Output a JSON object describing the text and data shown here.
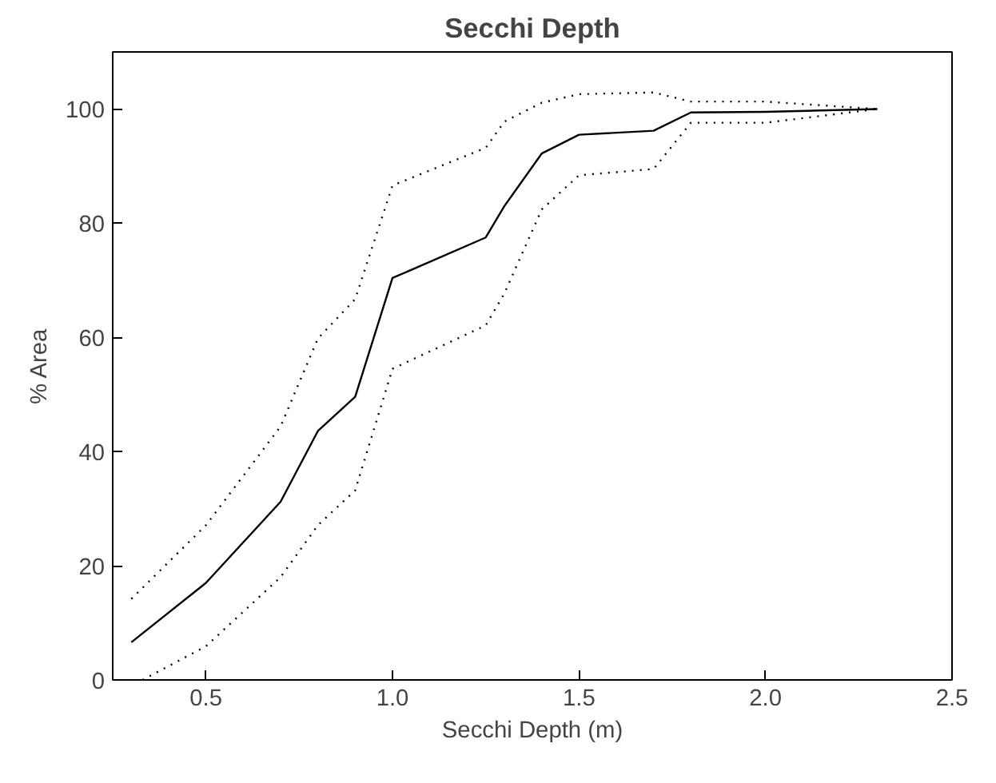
{
  "chart_data": {
    "type": "line",
    "title": "Secchi Depth",
    "xlabel": "Secchi Depth (m)",
    "ylabel": "% Area",
    "x": [
      0.3,
      0.5,
      0.7,
      0.8,
      0.9,
      1.0,
      1.25,
      1.3,
      1.4,
      1.5,
      1.7,
      1.8,
      2.0,
      2.3
    ],
    "series": [
      {
        "color": "#000000",
        "line_style": "solid",
        "values": [
          6.6,
          17.0,
          31.2,
          43.6,
          49.6,
          70.4,
          77.5,
          83.0,
          92.2,
          95.5,
          96.2,
          99.4,
          99.5,
          100
        ]
      },
      {
        "color": "#000000",
        "line_style": "dotted",
        "values": [
          14.2,
          27.1,
          44.4,
          59.8,
          66.7,
          86.6,
          93.2,
          97.8,
          101.1,
          102.6,
          102.9,
          101.3,
          101.3,
          100
        ]
      },
      {
        "color": "#000000",
        "line_style": "dotted",
        "x": [
          0.33,
          0.5,
          0.7,
          0.8,
          0.9,
          1.0,
          1.25,
          1.3,
          1.4,
          1.5,
          1.7,
          1.8,
          2.0,
          2.3
        ],
        "values": [
          0,
          5.9,
          18.0,
          27.1,
          33.2,
          54.5,
          62.1,
          67.7,
          82.4,
          88.4,
          89.5,
          97.6,
          97.6,
          100
        ]
      }
    ],
    "xlim": [
      0.25,
      2.5
    ],
    "ylim": [
      0,
      110
    ],
    "xticks": [
      {
        "value": 0.5,
        "label": "0.5"
      },
      {
        "value": 1.0,
        "label": "1.0"
      },
      {
        "value": 1.5,
        "label": "1.5"
      },
      {
        "value": 2.0,
        "label": "2.0"
      },
      {
        "value": 2.5,
        "label": "2.5"
      }
    ],
    "yticks": [
      0,
      20,
      40,
      60,
      80,
      100
    ],
    "grid": false,
    "marker": "none"
  }
}
